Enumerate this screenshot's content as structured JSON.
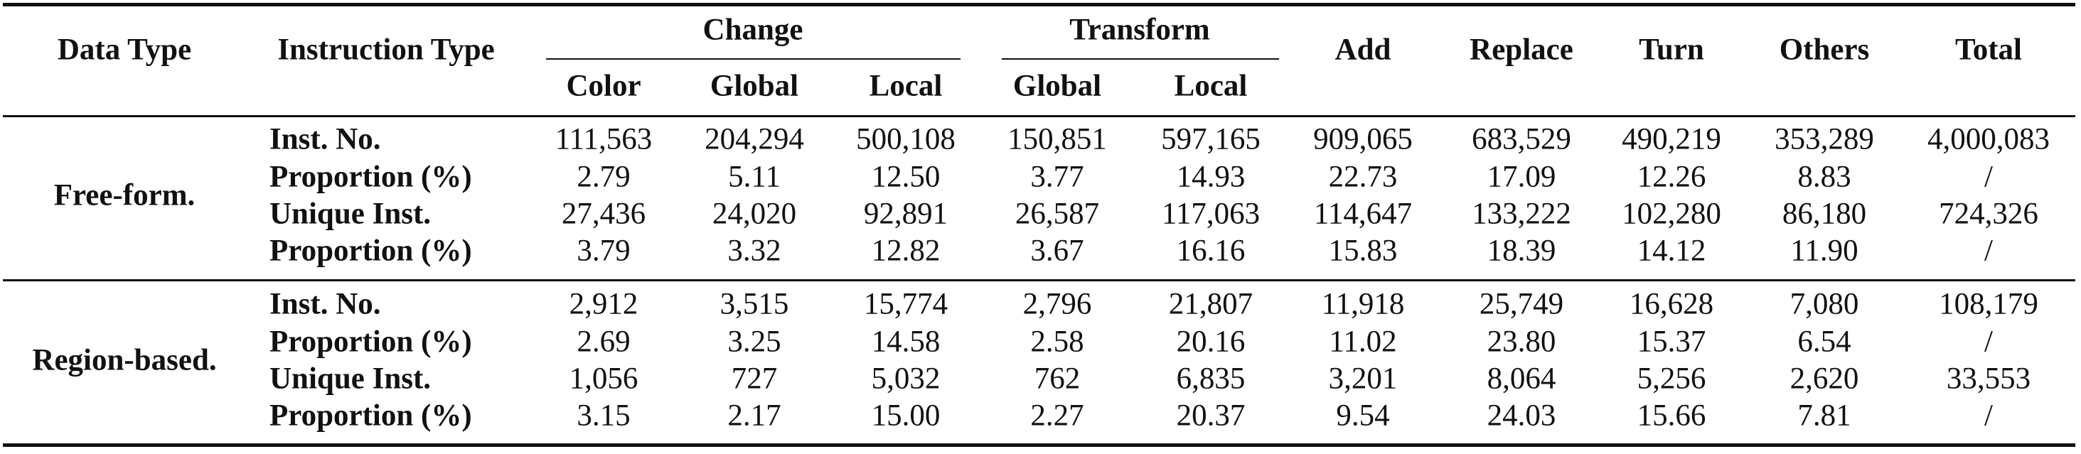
{
  "headers": {
    "data_type": "Data Type",
    "instruction_type": "Instruction Type",
    "groups": {
      "change": "Change",
      "transform": "Transform"
    },
    "sub": {
      "change_color": "Color",
      "change_global": "Global",
      "change_local": "Local",
      "transform_global": "Global",
      "transform_local": "Local"
    },
    "add": "Add",
    "replace": "Replace",
    "turn": "Turn",
    "others": "Others",
    "total": "Total"
  },
  "sections": [
    {
      "data_type": "Free-form.",
      "rows": [
        {
          "label": "Inst. No.",
          "values": [
            "111,563",
            "204,294",
            "500,108",
            "150,851",
            "597,165",
            "909,065",
            "683,529",
            "490,219",
            "353,289",
            "4,000,083"
          ]
        },
        {
          "label": "Proportion (%)",
          "values": [
            "2.79",
            "5.11",
            "12.50",
            "3.77",
            "14.93",
            "22.73",
            "17.09",
            "12.26",
            "8.83",
            "/"
          ]
        },
        {
          "label": "Unique Inst.",
          "values": [
            "27,436",
            "24,020",
            "92,891",
            "26,587",
            "117,063",
            "114,647",
            "133,222",
            "102,280",
            "86,180",
            "724,326"
          ]
        },
        {
          "label": "Proportion (%)",
          "values": [
            "3.79",
            "3.32",
            "12.82",
            "3.67",
            "16.16",
            "15.83",
            "18.39",
            "14.12",
            "11.90",
            "/"
          ]
        }
      ]
    },
    {
      "data_type": "Region-based.",
      "rows": [
        {
          "label": "Inst. No.",
          "values": [
            "2,912",
            "3,515",
            "15,774",
            "2,796",
            "21,807",
            "11,918",
            "25,749",
            "16,628",
            "7,080",
            "108,179"
          ]
        },
        {
          "label": "Proportion (%)",
          "values": [
            "2.69",
            "3.25",
            "14.58",
            "2.58",
            "20.16",
            "11.02",
            "23.80",
            "15.37",
            "6.54",
            "/"
          ]
        },
        {
          "label": "Unique Inst.",
          "values": [
            "1,056",
            "727",
            "5,032",
            "762",
            "6,835",
            "3,201",
            "8,064",
            "5,256",
            "2,620",
            "33,553"
          ]
        },
        {
          "label": "Proportion (%)",
          "values": [
            "3.15",
            "2.17",
            "15.00",
            "2.27",
            "20.37",
            "9.54",
            "24.03",
            "15.66",
            "7.81",
            "/"
          ]
        }
      ]
    }
  ]
}
